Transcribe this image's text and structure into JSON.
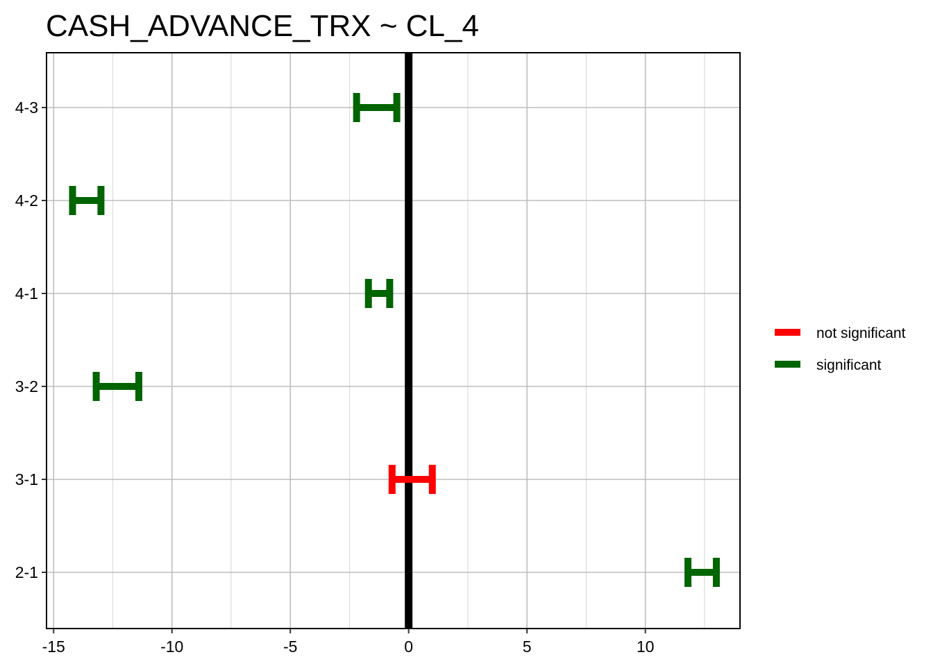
{
  "chart_data": {
    "type": "errorbar",
    "title": "CASH_ADVANCE_TRX  ~ CL_4",
    "xlabel": "",
    "ylabel": "",
    "xlim": [
      -15.3,
      14.0
    ],
    "x_ticks": [
      -15,
      -10,
      -5,
      0,
      5,
      10
    ],
    "x_tick_labels": [
      "-15",
      "-10",
      "-5",
      "0",
      "5",
      "10"
    ],
    "x_minor_ticks": [
      -12.5,
      -7.5,
      -2.5,
      2.5,
      7.5,
      12.5
    ],
    "categories": [
      "2-1",
      "3-1",
      "3-2",
      "4-1",
      "4-2",
      "4-3"
    ],
    "reference_line": 0,
    "grid": true,
    "legend_position": "right",
    "groups": [
      {
        "key": "not-significant",
        "name": "not significant",
        "color": "#ff0000"
      },
      {
        "key": "significant",
        "name": "significant",
        "color": "#006400"
      }
    ],
    "intervals": [
      {
        "category": "4-3",
        "lower": -2.2,
        "upper": -0.5,
        "group": "significant"
      },
      {
        "category": "4-2",
        "lower": -14.2,
        "upper": -13.0,
        "group": "significant"
      },
      {
        "category": "4-1",
        "lower": -1.7,
        "upper": -0.8,
        "group": "significant"
      },
      {
        "category": "3-2",
        "lower": -13.2,
        "upper": -11.4,
        "group": "significant"
      },
      {
        "category": "3-1",
        "lower": -0.7,
        "upper": 1.0,
        "group": "not-significant"
      },
      {
        "category": "2-1",
        "lower": 11.8,
        "upper": 13.0,
        "group": "significant"
      }
    ]
  }
}
